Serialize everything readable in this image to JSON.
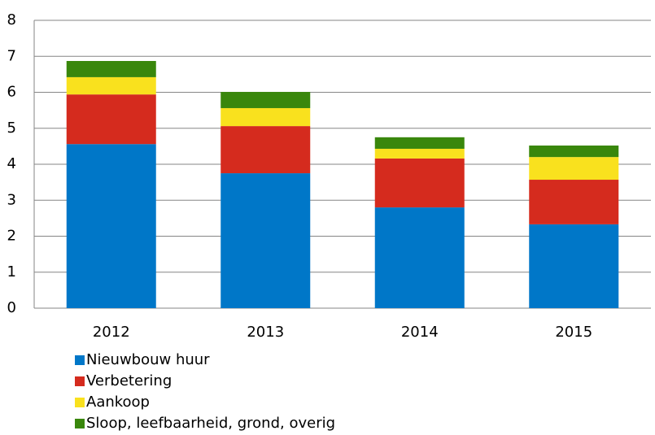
{
  "chart_data": {
    "type": "bar",
    "stacked": true,
    "categories": [
      "2012",
      "2013",
      "2014",
      "2015"
    ],
    "series": [
      {
        "name": "Nieuwbouw huur",
        "color": "#0077c8",
        "values": [
          4.56,
          3.75,
          2.8,
          2.33
        ]
      },
      {
        "name": "Verbetering",
        "color": "#d52b1e",
        "values": [
          1.38,
          1.31,
          1.36,
          1.24
        ]
      },
      {
        "name": "Aankoop",
        "color": "#f9e11e",
        "values": [
          0.48,
          0.5,
          0.27,
          0.63
        ]
      },
      {
        "name": "Sloop, leefbaarheid, grond, overig",
        "color": "#39870c",
        "values": [
          0.45,
          0.45,
          0.32,
          0.32
        ]
      }
    ],
    "ylim": [
      0,
      8
    ],
    "yticks": [
      0,
      1,
      2,
      3,
      4,
      5,
      6,
      7,
      8
    ],
    "grid": true,
    "legend": "bottom"
  }
}
